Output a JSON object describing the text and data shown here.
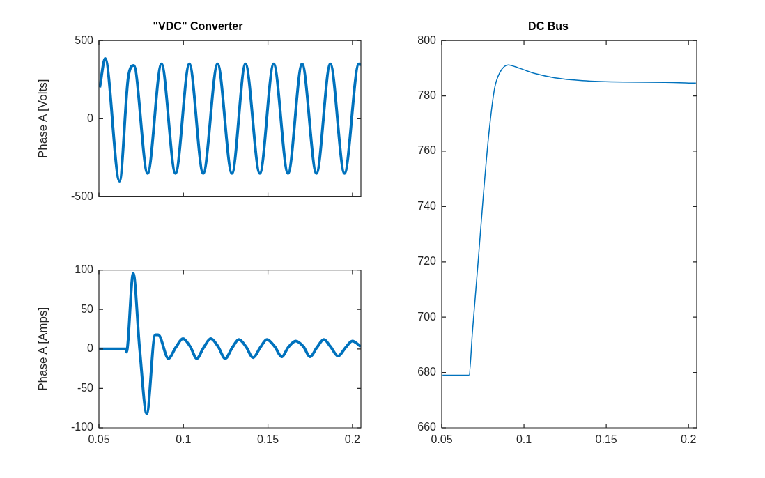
{
  "chart_data": [
    {
      "type": "line",
      "title": "\"VDC\" Converter",
      "ylabel": "Phase A [Volts]",
      "xlim": [
        0.05,
        0.205
      ],
      "xticks": [
        0.05,
        0.1,
        0.15,
        0.2
      ],
      "ylim": [
        -500,
        500
      ],
      "yticks": [
        -500,
        0,
        500
      ],
      "tick_labels": "y",
      "series": [
        {
          "color": "#0072bd",
          "x": [
            0.0505,
            0.0537,
            0.0622,
            0.0674,
            0.0706,
            0.0788,
            0.087,
            0.0953,
            0.1035,
            0.1117,
            0.1202,
            0.1287,
            0.1367,
            0.1452,
            0.1534,
            0.1619,
            0.1702,
            0.1787,
            0.1869,
            0.1953,
            0.2038,
            0.205
          ],
          "values": [
            200,
            385,
            -400,
            268,
            340,
            -350,
            350,
            -350,
            350,
            -350,
            350,
            -350,
            350,
            -350,
            350,
            -350,
            350,
            -350,
            350,
            -350,
            350,
            340
          ]
        }
      ]
    },
    {
      "type": "line",
      "ylabel": "Phase A [Amps]",
      "xlim": [
        0.05,
        0.205
      ],
      "xticks": [
        0.05,
        0.1,
        0.15,
        0.2
      ],
      "ylim": [
        -100,
        100
      ],
      "yticks": [
        -100,
        -50,
        0,
        50,
        100
      ],
      "series": [
        {
          "color": "#0072bd",
          "x": [
            0.05,
            0.0661,
            0.0663,
            0.0703,
            0.0741,
            0.0783,
            0.0833,
            0.0851,
            0.0911,
            0.0955,
            0.0997,
            0.104,
            0.1079,
            0.112,
            0.1162,
            0.1205,
            0.1247,
            0.129,
            0.1328,
            0.137,
            0.1412,
            0.1455,
            0.1494,
            0.154,
            0.1582,
            0.162,
            0.1664,
            0.171,
            0.1749,
            0.179,
            0.1831,
            0.187,
            0.1915,
            0.196,
            0.1999,
            0.205
          ],
          "values": [
            0,
            0,
            -4,
            96,
            0,
            -82,
            18,
            18,
            -12,
            2,
            13,
            3,
            -12,
            2,
            13,
            3,
            -12,
            2,
            12,
            3,
            -11,
            2,
            12,
            3,
            -10,
            2,
            10,
            3,
            -10,
            2,
            12,
            3,
            -9,
            2,
            10,
            3
          ]
        }
      ]
    },
    {
      "type": "line",
      "title": "DC Bus",
      "xlim": [
        0.05,
        0.205
      ],
      "xticks": [
        0.05,
        0.1,
        0.15,
        0.2
      ],
      "ylim": [
        660,
        800
      ],
      "yticks": [
        660,
        680,
        700,
        720,
        740,
        760,
        780,
        800
      ],
      "series": [
        {
          "color": "#0072bd",
          "x": [
            0.0505,
            0.0666,
            0.0687,
            0.0721,
            0.0754,
            0.0787,
            0.0821,
            0.0854,
            0.0904,
            0.0971,
            0.1071,
            0.1188,
            0.1355,
            0.1606,
            0.1857,
            0.2045
          ],
          "values": [
            679,
            679,
            694.9,
            719.8,
            744.7,
            766.6,
            782.6,
            788.5,
            791.2,
            790,
            788,
            786.5,
            785.5,
            785,
            784.9,
            784.6
          ]
        }
      ]
    }
  ]
}
